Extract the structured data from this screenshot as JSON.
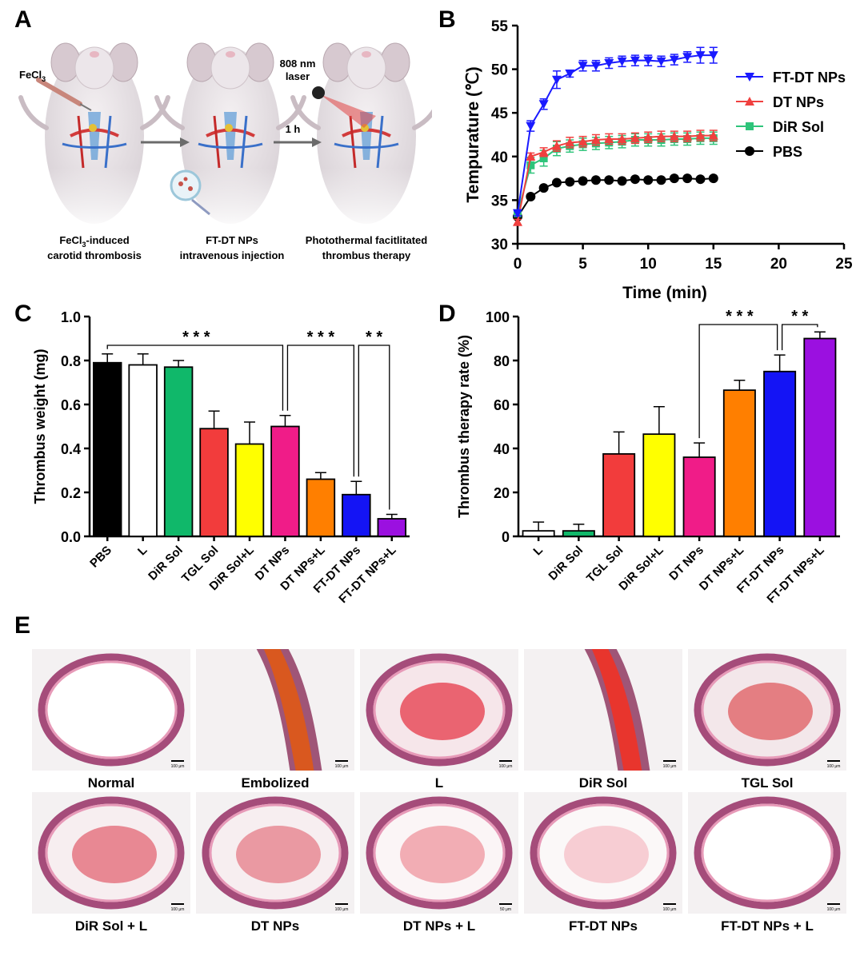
{
  "panels": {
    "a": "A",
    "b": "B",
    "c": "C",
    "d": "D",
    "e": "E"
  },
  "schematic": {
    "reagent": "FeCl",
    "reagent_sub": "3",
    "laser_line1": "808 nm",
    "laser_line2": "laser",
    "arrow2_label": "1 h",
    "captions": [
      {
        "l1a": "FeCl",
        "l1sub": "3",
        "l1b": "-induced",
        "l2": "carotid thrombosis"
      },
      {
        "l1a": "FT-DT NPs",
        "l1sub": "",
        "l1b": "",
        "l2": "intravenous injection"
      },
      {
        "l1a": "Photothermal facitlitated",
        "l1sub": "",
        "l1b": "",
        "l2": "thrombus therapy"
      }
    ]
  },
  "chart_data": [
    {
      "type": "line",
      "xlabel": "Time (min)",
      "ylabel": "Tempurature (℃)",
      "xlim": [
        0,
        25
      ],
      "ylim": [
        30,
        55
      ],
      "xticks": [
        "0",
        "5",
        "10",
        "15",
        "20",
        "25"
      ],
      "yticks": [
        "30",
        "35",
        "40",
        "45",
        "50",
        "55"
      ],
      "legend_position": "top-right",
      "x": [
        0,
        1,
        2,
        3,
        4,
        5,
        6,
        7,
        8,
        9,
        10,
        11,
        12,
        13,
        14,
        15
      ],
      "series": [
        {
          "name": "FT-DT NPs",
          "color": "#1a1aff",
          "marker": "triangle-down",
          "values": [
            33.5,
            43.5,
            46.0,
            48.8,
            49.5,
            50.4,
            50.4,
            50.7,
            50.9,
            51.0,
            51.0,
            50.9,
            51.1,
            51.4,
            51.6,
            51.6
          ],
          "errors": [
            0.3,
            0.6,
            0.6,
            1.0,
            0.4,
            0.6,
            0.6,
            0.6,
            0.6,
            0.6,
            0.6,
            0.6,
            0.6,
            0.6,
            0.9,
            0.9
          ]
        },
        {
          "name": "DT NPs",
          "color": "#f0403f",
          "marker": "triangle-up",
          "values": [
            32.5,
            40.0,
            40.5,
            41.2,
            41.6,
            41.7,
            41.9,
            42.0,
            42.0,
            42.1,
            42.2,
            42.3,
            42.3,
            42.3,
            42.4,
            42.4
          ],
          "errors": [
            0.3,
            0.4,
            0.5,
            0.6,
            0.6,
            0.6,
            0.6,
            0.6,
            0.6,
            0.6,
            0.6,
            0.6,
            0.6,
            0.6,
            0.6,
            0.6
          ]
        },
        {
          "name": "DiR Sol",
          "color": "#2ec47a",
          "marker": "square",
          "values": [
            33.5,
            39.0,
            39.8,
            40.9,
            41.2,
            41.4,
            41.5,
            41.6,
            41.7,
            41.9,
            41.9,
            41.9,
            42.0,
            42.0,
            42.1,
            42.1
          ],
          "errors": [
            0.3,
            0.9,
            0.9,
            0.8,
            0.7,
            0.7,
            0.7,
            0.7,
            0.7,
            0.7,
            0.7,
            0.7,
            0.7,
            0.7,
            0.7,
            0.7
          ]
        },
        {
          "name": "PBS",
          "color": "#000000",
          "marker": "circle",
          "values": [
            33.1,
            35.4,
            36.4,
            37.0,
            37.1,
            37.2,
            37.3,
            37.3,
            37.2,
            37.4,
            37.3,
            37.3,
            37.5,
            37.5,
            37.4,
            37.5
          ],
          "errors": [
            0.2,
            0.2,
            0.2,
            0.2,
            0.2,
            0.2,
            0.2,
            0.2,
            0.2,
            0.2,
            0.2,
            0.2,
            0.2,
            0.2,
            0.2,
            0.2
          ]
        }
      ]
    },
    {
      "type": "bar",
      "ylabel": "Thrombus weight (mg)",
      "ylim": [
        0,
        1.0
      ],
      "yticks": [
        "0.0",
        "0.2",
        "0.4",
        "0.6",
        "0.8",
        "1.0"
      ],
      "categories": [
        "PBS",
        "L",
        "DiR Sol",
        "TGL Sol",
        "DiR Sol+L",
        "DT NPs",
        "DT NPs+L",
        "FT-DT NPs",
        "FT-DT NPs+L"
      ],
      "values": [
        0.79,
        0.78,
        0.77,
        0.49,
        0.42,
        0.5,
        0.26,
        0.19,
        0.08
      ],
      "errors": [
        0.04,
        0.05,
        0.03,
        0.08,
        0.1,
        0.05,
        0.03,
        0.06,
        0.02
      ],
      "colors": [
        "#000000",
        "#ffffff",
        "#10b86a",
        "#f23c3c",
        "#ffff00",
        "#f01c88",
        "#ff7f00",
        "#1414f5",
        "#9b10e0"
      ],
      "significance": [
        {
          "from": 0,
          "to": 5,
          "label": "***"
        },
        {
          "from": 5,
          "to": 7,
          "label": "***"
        },
        {
          "from": 7,
          "to": 8,
          "label": "**"
        }
      ]
    },
    {
      "type": "bar",
      "ylabel": "Thrombus therapy rate (%)",
      "ylim": [
        0,
        100
      ],
      "yticks": [
        "0",
        "20",
        "40",
        "60",
        "80",
        "100"
      ],
      "categories": [
        "L",
        "DiR Sol",
        "TGL Sol",
        "DiR Sol+L",
        "DT NPs",
        "DT NPs+L",
        "FT-DT NPs",
        "FT-DT NPs+L"
      ],
      "values": [
        2.5,
        2.5,
        37.5,
        46.5,
        36,
        66.5,
        75,
        90
      ],
      "errors": [
        4,
        3,
        10,
        12.5,
        6.5,
        4.5,
        7.5,
        3
      ],
      "colors": [
        "#ffffff",
        "#10b86a",
        "#f23c3c",
        "#ffff00",
        "#f01c88",
        "#ff7f00",
        "#1414f5",
        "#9b10e0"
      ],
      "significance": [
        {
          "from": 4,
          "to": 6,
          "label": "***"
        },
        {
          "from": 6,
          "to": 7,
          "label": "**"
        }
      ]
    }
  ],
  "histology": {
    "labels": [
      "Normal",
      "Embolized",
      "L",
      "DiR Sol",
      "TGL Sol",
      "DiR Sol + L",
      "DT NPs",
      "DT NPs + L",
      "FT-DT NPs",
      "FT-DT NPs + L"
    ],
    "scale_bars": [
      "100 μm",
      "100 μm",
      "100 μm",
      "100 μm",
      "100 μm",
      "100 μm",
      "100 μm",
      "50 μm",
      "100 μm",
      "100 μm"
    ]
  }
}
